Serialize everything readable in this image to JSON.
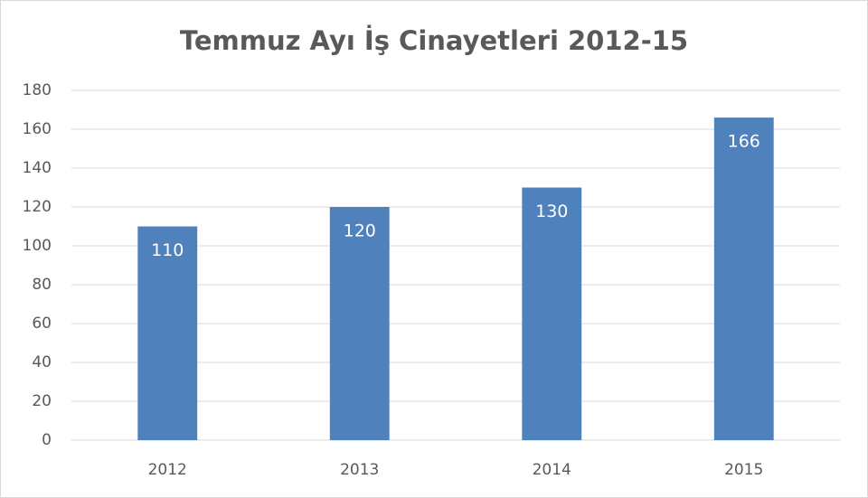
{
  "chart_data": {
    "type": "bar",
    "title": "Temmuz Ayı İş Cinayetleri 2012-15",
    "categories": [
      "2012",
      "2013",
      "2014",
      "2015"
    ],
    "values": [
      110,
      120,
      130,
      166
    ],
    "color": "#4f81bd",
    "ylim": [
      0,
      180
    ],
    "yticks": [
      0,
      20,
      40,
      60,
      80,
      100,
      120,
      140,
      160,
      180
    ],
    "grid": true,
    "data_labels": true
  }
}
